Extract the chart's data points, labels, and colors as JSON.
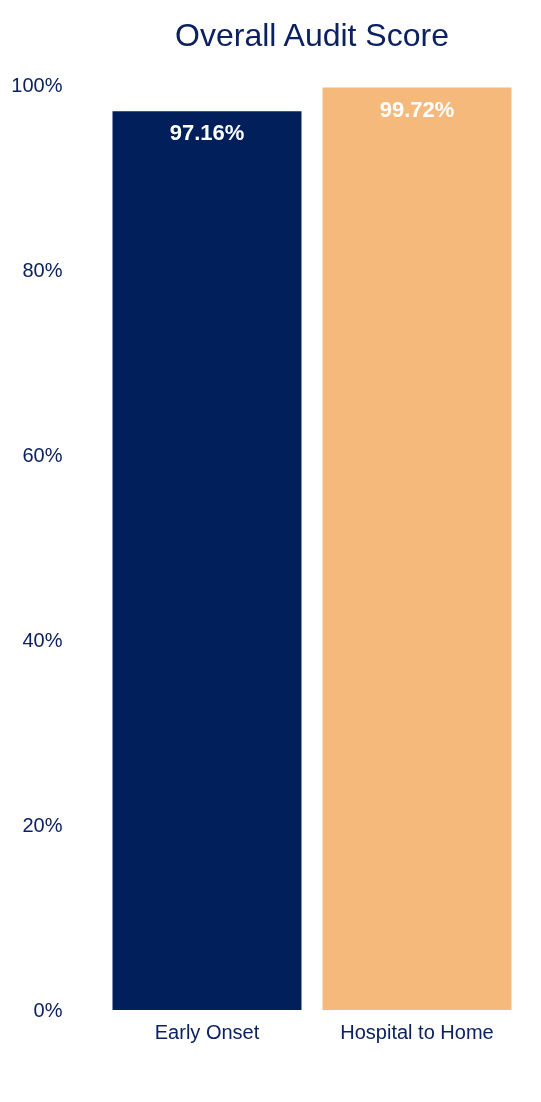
{
  "chart_data": {
    "type": "bar",
    "title": "Overall Audit Score",
    "categories": [
      "Early Onset",
      "Hospital to Home"
    ],
    "values": [
      97.16,
      99.72
    ],
    "colors": [
      "#001f5b",
      "#f4b97b"
    ],
    "value_labels": [
      "97.16%",
      "99.72%"
    ],
    "ylim": [
      0,
      100
    ],
    "yticks": [
      {
        "value": 0,
        "label": "0%"
      },
      {
        "value": 20,
        "label": "20%"
      },
      {
        "value": 40,
        "label": "40%"
      },
      {
        "value": 60,
        "label": "60%"
      },
      {
        "value": 80,
        "label": "80%"
      },
      {
        "value": 100,
        "label": "100%"
      }
    ],
    "grid": false,
    "legend": false
  }
}
